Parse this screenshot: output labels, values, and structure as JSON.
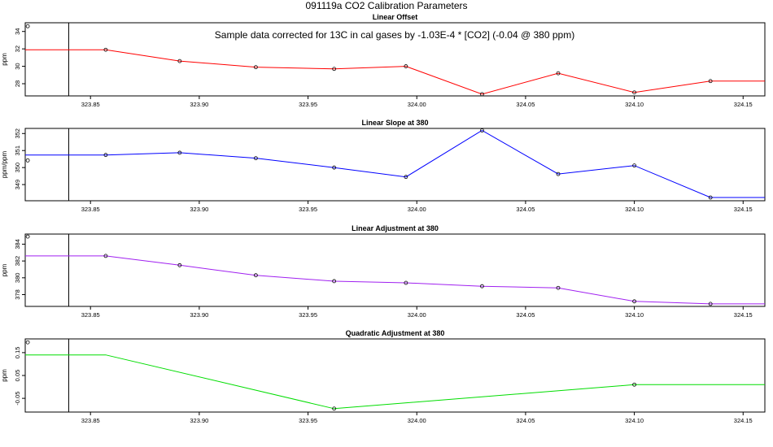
{
  "main_title": "091119a   CO2 Calibration Parameters",
  "chart_data": [
    {
      "type": "line",
      "title": "Linear Offset",
      "annotation": "Sample data corrected for 13C in cal gases by -1.03E-4 * [CO2] (-0.04 @ 380 ppm)",
      "ylabel": "ppm",
      "xlabel": "",
      "color": "#ff0000",
      "xlim": [
        323.82,
        324.16
      ],
      "ylim": [
        26.6,
        35.0
      ],
      "x_ticks": [
        "323.85",
        "323.90",
        "323.95",
        "324.00",
        "324.05",
        "324.10",
        "324.15"
      ],
      "y_ticks": [
        "28",
        "30",
        "32",
        "34"
      ],
      "reference_x": 323.84,
      "outlier": {
        "x": 323.835,
        "y": 34.6
      },
      "line_start_x": 323.82,
      "line_end_x": 324.16,
      "points": [
        {
          "x": 323.857,
          "y": 31.9
        },
        {
          "x": 323.891,
          "y": 30.6
        },
        {
          "x": 323.926,
          "y": 29.9
        },
        {
          "x": 323.962,
          "y": 29.7
        },
        {
          "x": 323.995,
          "y": 30.0
        },
        {
          "x": 324.03,
          "y": 26.8
        },
        {
          "x": 324.065,
          "y": 29.2
        },
        {
          "x": 324.1,
          "y": 27.0
        },
        {
          "x": 324.135,
          "y": 28.3
        }
      ]
    },
    {
      "type": "line",
      "title": "Linear Slope at 380",
      "ylabel": "ppm/ppm",
      "xlabel": "",
      "color": "#0000ff",
      "xlim": [
        323.82,
        324.16
      ],
      "ylim": [
        348.05,
        352.3
      ],
      "x_ticks": [
        "323.85",
        "323.90",
        "323.95",
        "324.00",
        "324.05",
        "324.10",
        "324.15"
      ],
      "y_ticks": [
        "349",
        "350",
        "351",
        "352"
      ],
      "reference_x": 323.84,
      "outlier": {
        "x": 323.835,
        "y": 350.42
      },
      "line_start_x": 323.82,
      "line_end_x": 324.16,
      "points": [
        {
          "x": 323.857,
          "y": 350.74
        },
        {
          "x": 323.891,
          "y": 350.87
        },
        {
          "x": 323.926,
          "y": 350.55
        },
        {
          "x": 323.962,
          "y": 350.0
        },
        {
          "x": 323.995,
          "y": 349.45
        },
        {
          "x": 324.03,
          "y": 352.18
        },
        {
          "x": 324.065,
          "y": 349.62
        },
        {
          "x": 324.1,
          "y": 350.12
        },
        {
          "x": 324.135,
          "y": 348.24
        }
      ]
    },
    {
      "type": "line",
      "title": "Linear Adjustment at 380",
      "ylabel": "ppm",
      "xlabel": "",
      "color": "#a020f0",
      "xlim": [
        323.82,
        324.16
      ],
      "ylim": [
        376.6,
        385.2
      ],
      "x_ticks": [
        "323.85",
        "323.90",
        "323.95",
        "324.00",
        "324.05",
        "324.10",
        "324.15"
      ],
      "y_ticks": [
        "378",
        "380",
        "382",
        "384"
      ],
      "reference_x": 323.84,
      "outlier": {
        "x": 323.835,
        "y": 384.9
      },
      "line_start_x": 323.82,
      "line_end_x": 324.16,
      "points": [
        {
          "x": 323.857,
          "y": 382.6
        },
        {
          "x": 323.891,
          "y": 381.5
        },
        {
          "x": 323.926,
          "y": 380.3
        },
        {
          "x": 323.962,
          "y": 379.6
        },
        {
          "x": 323.995,
          "y": 379.4
        },
        {
          "x": 324.03,
          "y": 379.0
        },
        {
          "x": 324.065,
          "y": 378.8
        },
        {
          "x": 324.1,
          "y": 377.2
        },
        {
          "x": 324.135,
          "y": 376.9
        }
      ]
    },
    {
      "type": "line",
      "title": "Quadratic Adjustment at 380",
      "ylabel": "ppm",
      "xlabel": "",
      "color": "#00dd00",
      "xlim": [
        323.82,
        324.16
      ],
      "ylim": [
        -0.11,
        0.21
      ],
      "x_ticks": [
        "323.85",
        "323.90",
        "323.95",
        "324.00",
        "324.05",
        "324.10",
        "324.15"
      ],
      "y_ticks": [
        "-0.05",
        "0.05",
        "0.15"
      ],
      "reference_x": 323.84,
      "outlier": {
        "x": 323.835,
        "y": 0.195
      },
      "line_start_x": 323.82,
      "line_end_x": 324.16,
      "flat_until_x": 323.857,
      "points": [
        {
          "x": 323.962,
          "y": -0.095
        },
        {
          "x": 324.1,
          "y": 0.01
        }
      ]
    }
  ]
}
